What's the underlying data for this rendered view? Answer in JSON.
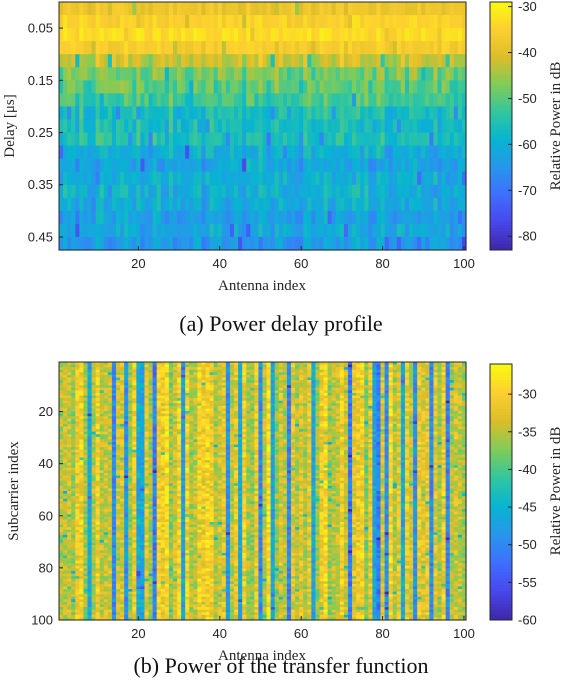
{
  "chart_data": [
    {
      "type": "heatmap",
      "title": "",
      "xlabel": "Antenna index",
      "ylabel": "Delay [μs]",
      "colorbar_label": "Relative Power in dB",
      "x_range": [
        1,
        100
      ],
      "y_range": [
        0,
        0.475
      ],
      "y_reversed": true,
      "x_ticks": [
        20,
        40,
        60,
        80,
        100
      ],
      "y_ticks": [
        0.05,
        0.15,
        0.25,
        0.35,
        0.45
      ],
      "color_range": [
        -83,
        -29
      ],
      "colorbar_ticks": [
        -30,
        -40,
        -50,
        -60,
        -70,
        -80
      ],
      "colormap": "parula",
      "n_x": 100,
      "n_y": 19,
      "delay_mean_profile_db": [
        -38,
        -35,
        -33,
        -36,
        -42,
        -48,
        -50,
        -52,
        -56,
        -57,
        -56,
        -60,
        -62,
        -60,
        -60,
        -61,
        -63,
        -62,
        -64
      ],
      "noise_seed": 7
    },
    {
      "type": "heatmap",
      "title": "",
      "xlabel": "Antenna index",
      "ylabel": "Subcarrier index",
      "colorbar_label": "Relative Power in dB",
      "x_range": [
        1,
        100
      ],
      "y_range": [
        1,
        100
      ],
      "y_reversed": true,
      "x_ticks": [
        20,
        40,
        60,
        80,
        100
      ],
      "y_ticks": [
        20,
        40,
        60,
        80,
        100
      ],
      "color_range": [
        -60,
        -26
      ],
      "colorbar_ticks": [
        -30,
        -35,
        -40,
        -45,
        -50,
        -55,
        -60
      ],
      "colormap": "parula",
      "n_x": 100,
      "n_y": 100,
      "antenna_deep_fades": [
        8,
        14,
        17,
        20,
        21,
        24,
        31,
        42,
        45,
        50,
        53,
        57,
        63,
        72,
        78,
        79,
        81,
        85,
        88,
        92,
        96
      ],
      "noise_seed": 11
    }
  ],
  "captions": {
    "a": "(a) Power delay profile",
    "b": "(b) Power of the transfer function"
  }
}
